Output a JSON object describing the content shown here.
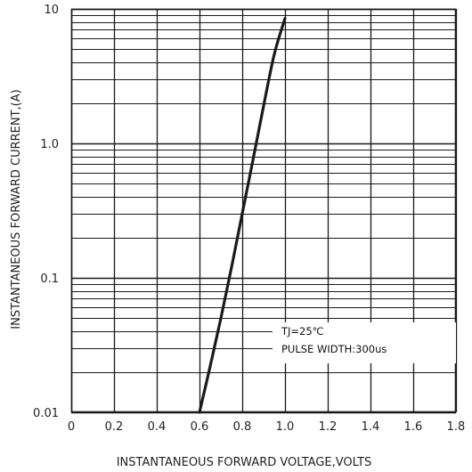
{
  "chart_data": {
    "type": "line",
    "xlabel": "INSTANTANEOUS FORWARD VOLTAGE,VOLTS",
    "ylabel": "INSTANTANEOUS FORWARD CURRENT,(A)",
    "xlim": [
      0,
      1.8
    ],
    "ylim": [
      0.01,
      10
    ],
    "yscale": "log",
    "grid": true,
    "x_ticks": [
      0,
      0.2,
      0.4,
      0.6,
      0.8,
      1.0,
      1.2,
      1.4,
      1.6,
      1.8
    ],
    "x_tick_labels": [
      "0",
      "0.2",
      "0.4",
      "0.6",
      "0.8",
      "1.0",
      "1.2",
      "1.4",
      "1.6",
      "1.8"
    ],
    "y_ticks": [
      0.01,
      0.1,
      1.0,
      10
    ],
    "y_tick_labels": [
      "0.01",
      "0.1",
      "1.0",
      "10"
    ],
    "series": [
      {
        "x": [
          0.6,
          0.65,
          0.7,
          0.75,
          0.8,
          0.85,
          0.9,
          0.95,
          1.0
        ],
        "y": [
          0.01,
          0.022,
          0.05,
          0.12,
          0.3,
          0.75,
          1.9,
          4.6,
          8.5
        ]
      }
    ],
    "annotations": [
      "TJ=25℃",
      "PULSE WIDTH:300us"
    ],
    "colors": {
      "line": "#1a1a1a",
      "grid": "#1a1a1a",
      "background": "#ffffff"
    }
  }
}
